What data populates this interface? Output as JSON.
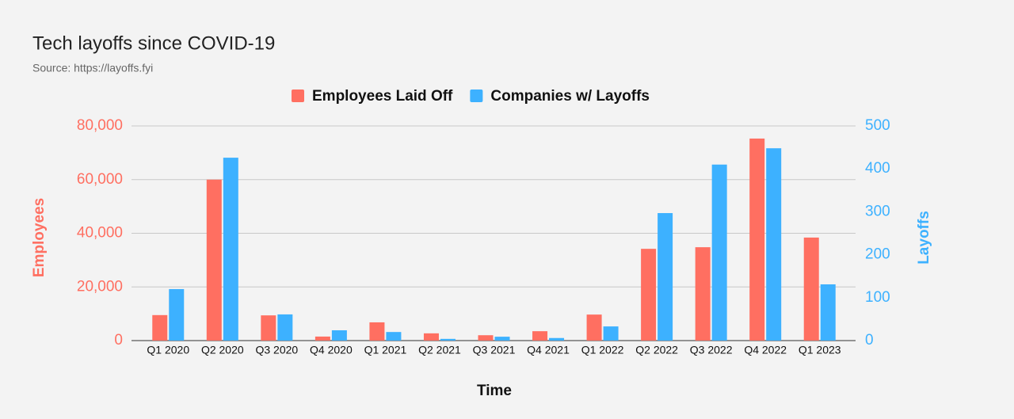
{
  "chart_data": {
    "type": "bar",
    "title": "Tech layoffs since COVID-19",
    "subtitle": "Source: https://layoffs.fyi",
    "x_label": "Time",
    "y_label": "Employees",
    "y2_label": "Layoffs",
    "categories": [
      "Q1 2020",
      "Q2 2020",
      "Q3 2020",
      "Q4 2020",
      "Q1 2021",
      "Q2 2021",
      "Q3 2021",
      "Q4 2021",
      "Q1 2022",
      "Q2 2022",
      "Q3 2022",
      "Q4 2022",
      "Q1 2023"
    ],
    "series": [
      {
        "name": "Employees Laid Off",
        "color": "#ff6f61",
        "values": [
          9500,
          60000,
          9400,
          1500,
          6800,
          2700,
          2000,
          3500,
          9700,
          34200,
          34800,
          75300,
          38400
        ]
      },
      {
        "name": "Companies w/ Layoffs",
        "color": "#3db1ff",
        "axis": "y2",
        "values": [
          120,
          426,
          61,
          24,
          20,
          4,
          9,
          6,
          33,
          297,
          410,
          448,
          131
        ]
      }
    ],
    "ylim": [
      0,
      80000
    ],
    "yticks": [
      0,
      {
        "value": 20000,
        "label": "20,000"
      },
      {
        "value": 40000,
        "label": "40,000"
      },
      {
        "value": 60000,
        "label": "60,000"
      },
      {
        "value": 80000,
        "label": "80,000"
      }
    ],
    "y2lim": [
      0,
      500
    ],
    "y2ticks": [
      0,
      100,
      200,
      300,
      400,
      500
    ],
    "grid": true,
    "legend": "top"
  }
}
